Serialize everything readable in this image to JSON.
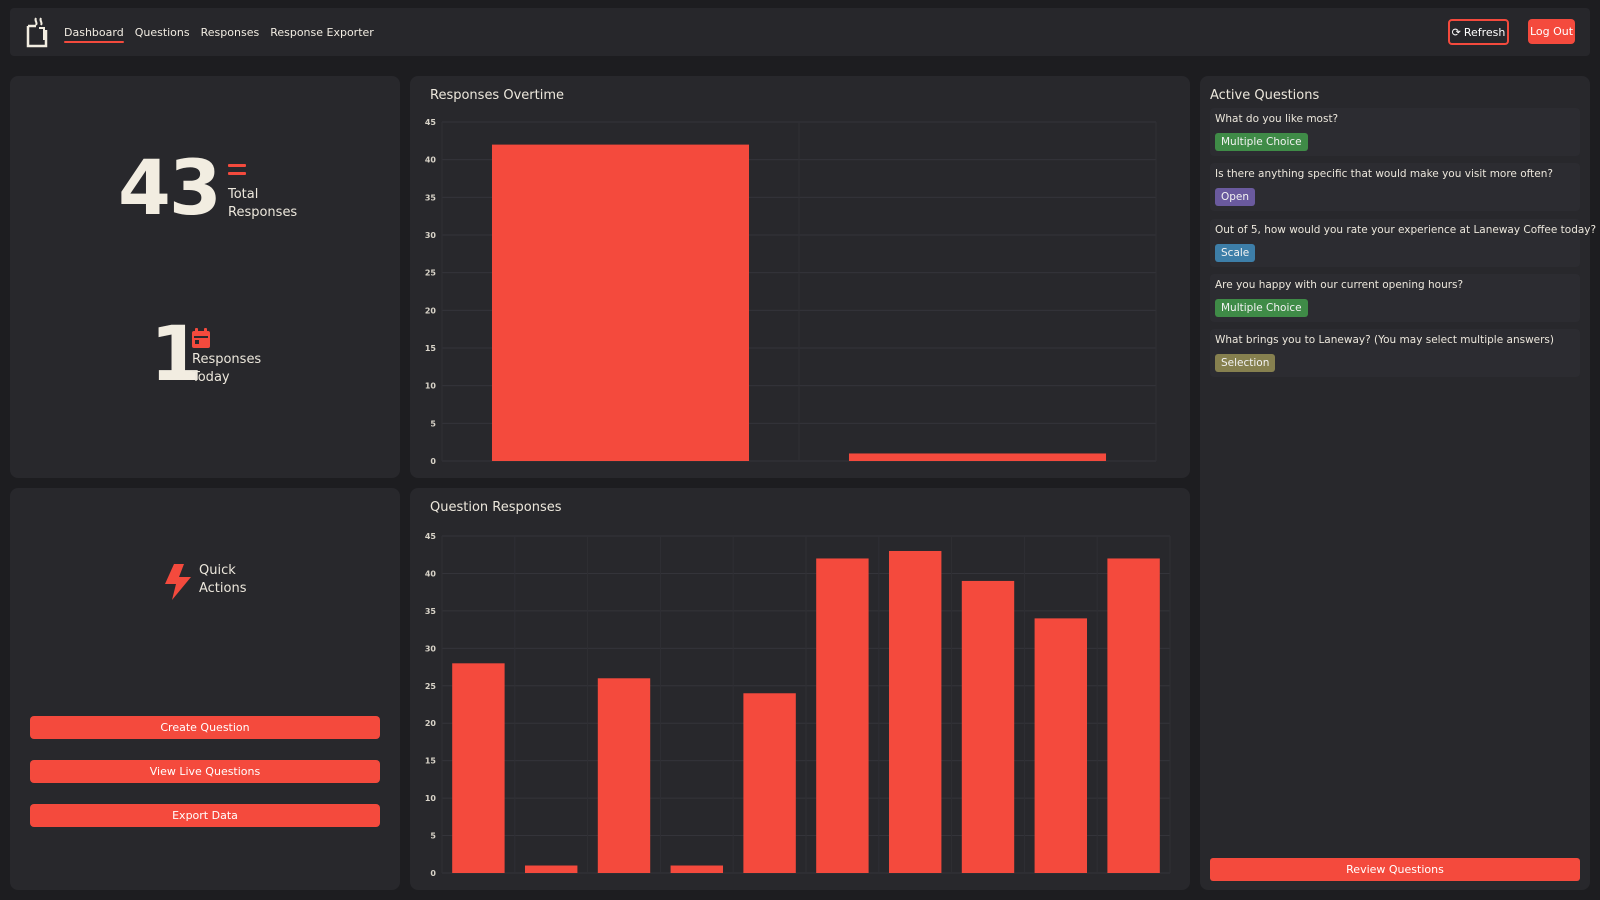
{
  "nav": {
    "items": [
      {
        "label": "Dashboard",
        "active": true
      },
      {
        "label": "Questions",
        "active": false
      },
      {
        "label": "Responses",
        "active": false
      },
      {
        "label": "Response Exporter",
        "active": false
      }
    ],
    "refresh_label": "Refresh",
    "logout_label": "Log Out"
  },
  "stats": {
    "total": {
      "value": "43",
      "label_line1": "Total",
      "label_line2": "Responses",
      "icon": "equals-icon"
    },
    "today": {
      "value": "1",
      "label_line1": "Responses",
      "label_line2": "Today",
      "icon": "calendar-icon"
    }
  },
  "quick_actions": {
    "title_line1": "Quick",
    "title_line2": "Actions",
    "icon": "lightning-icon",
    "buttons": [
      "Create Question",
      "View Live Questions",
      "Export Data"
    ]
  },
  "active_questions": {
    "title": "Active Questions",
    "items": [
      {
        "text": "What do you like most?",
        "badge": "Multiple Choice",
        "badge_color": "#3f8b47"
      },
      {
        "text": "Is there anything specific that would make you visit more often?",
        "badge": "Open",
        "badge_color": "#6a5a9e"
      },
      {
        "text": "Out of 5, how would you rate your experience at Laneway Coffee today?",
        "badge": "Scale",
        "badge_color": "#3d7ea8"
      },
      {
        "text": "Are you happy with our current opening hours?",
        "badge": "Multiple Choice",
        "badge_color": "#3f8b47"
      },
      {
        "text": "What brings you to Laneway? (You may select multiple answers)",
        "badge": "Selection",
        "badge_color": "#86804f"
      }
    ],
    "review_label": "Review Questions"
  },
  "colors": {
    "accent": "#f44a3d",
    "background": "#1d1d20",
    "card": "#28282c"
  },
  "chart_data": [
    {
      "type": "bar",
      "title": "Responses Overtime",
      "categories": [
        "",
        ""
      ],
      "values": [
        42,
        1
      ],
      "ylim": [
        0,
        45
      ],
      "yticks": [
        0,
        5,
        10,
        15,
        20,
        25,
        30,
        35,
        40,
        45
      ],
      "grid": true,
      "color": "#f44a3d"
    },
    {
      "type": "bar",
      "title": "Question Responses",
      "categories": [
        "",
        "",
        "",
        "",
        "",
        "",
        "",
        "",
        "",
        ""
      ],
      "values": [
        28,
        1,
        26,
        1,
        24,
        42,
        43,
        39,
        34,
        42
      ],
      "ylim": [
        0,
        45
      ],
      "yticks": [
        0,
        5,
        10,
        15,
        20,
        25,
        30,
        35,
        40,
        45
      ],
      "grid": true,
      "color": "#f44a3d"
    }
  ]
}
